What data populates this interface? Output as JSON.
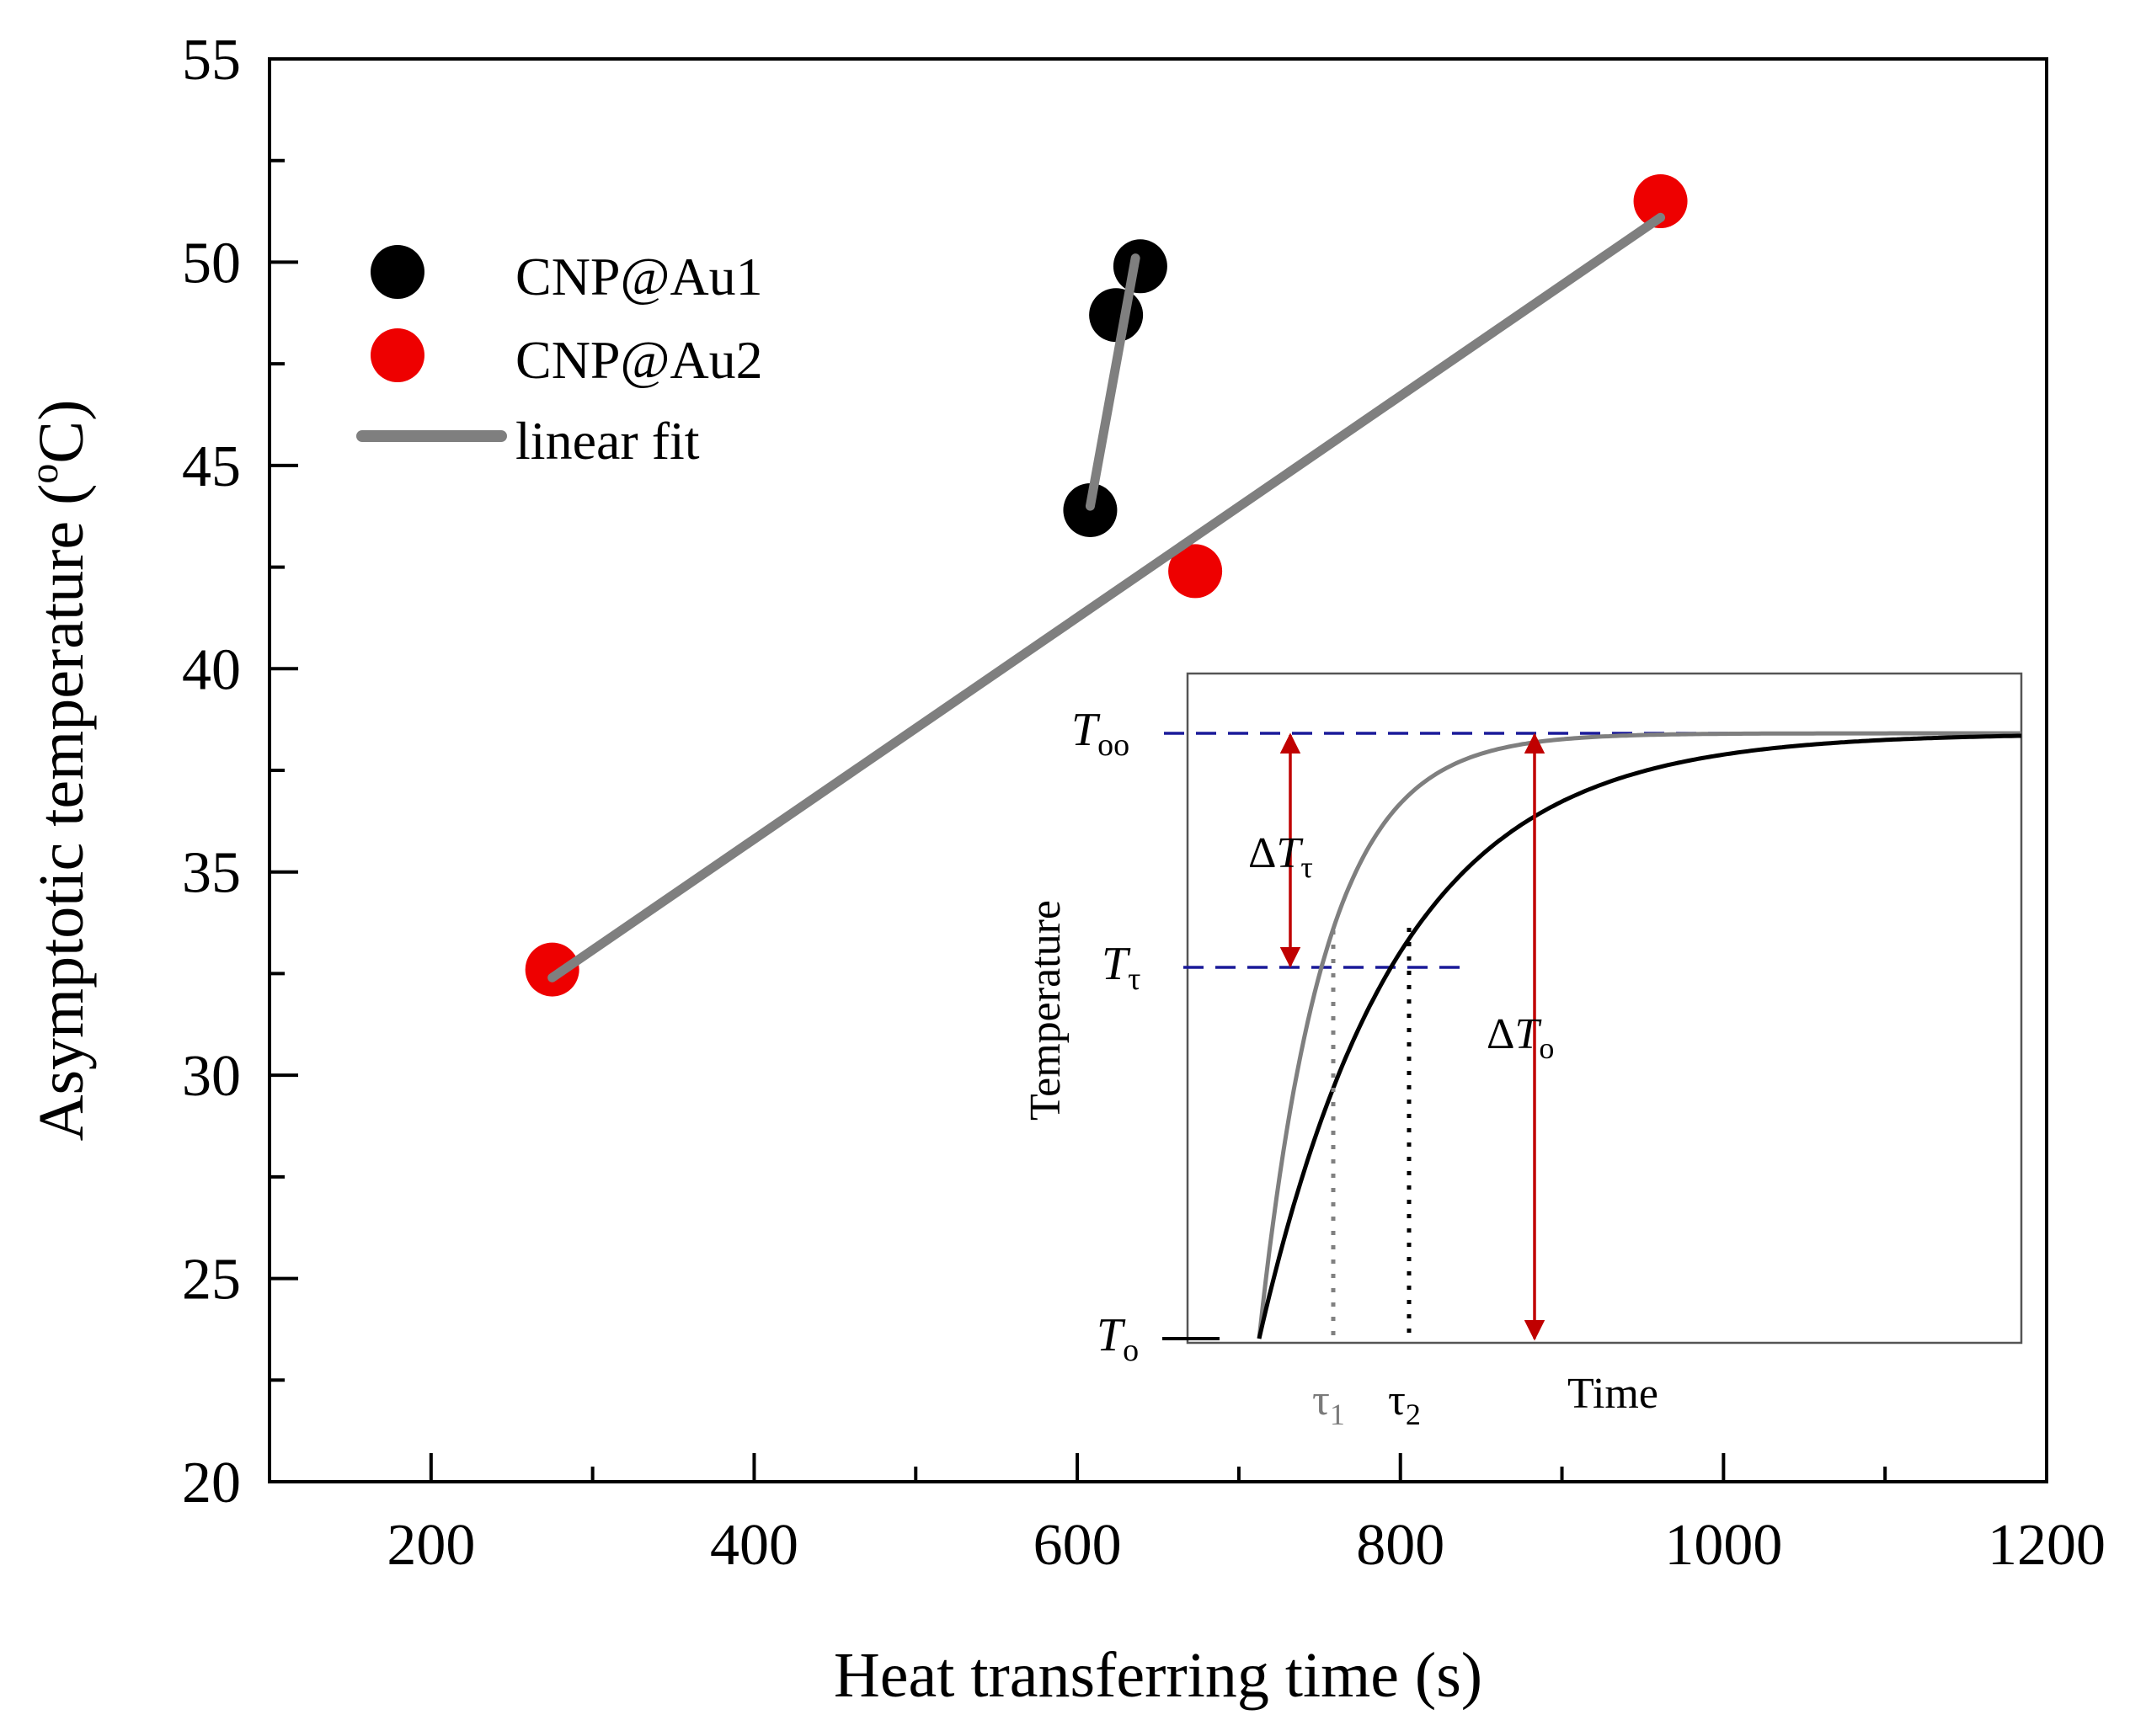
{
  "chart_data": {
    "type": "scatter",
    "xlabel": "Heat transferring time (s)",
    "ylabel": "Asymptotic temperature",
    "ylabel_unit_parts": [
      "(",
      "o",
      "C)"
    ],
    "xlim": [
      100,
      1200
    ],
    "ylim": [
      20,
      55
    ],
    "x_ticks": [
      200,
      400,
      600,
      800,
      1000,
      1200
    ],
    "x_tick_labels": [
      "200",
      "400",
      "600",
      "800",
      "1000",
      "1200"
    ],
    "y_ticks": [
      20,
      25,
      30,
      35,
      40,
      45,
      50,
      55
    ],
    "y_tick_labels": [
      "20",
      "25",
      "30",
      "35",
      "40",
      "45",
      "50",
      "55"
    ],
    "legend": {
      "position": "top-left",
      "entries": [
        {
          "label": "CNP@Au1",
          "kind": "marker",
          "color": "#000000"
        },
        {
          "label": "CNP@Au2",
          "kind": "marker",
          "color": "#ee0000"
        },
        {
          "label": "linear fit",
          "kind": "line",
          "color": "#7f7f7f"
        }
      ]
    },
    "series": [
      {
        "name": "CNP@Au1",
        "color": "#000000",
        "points": [
          [
            608,
            43.9
          ],
          [
            624,
            48.7
          ],
          [
            639,
            49.9
          ]
        ]
      },
      {
        "name": "CNP@Au2",
        "color": "#ee0000",
        "points": [
          [
            275,
            32.6
          ],
          [
            673,
            42.4
          ],
          [
            961,
            51.5
          ]
        ]
      }
    ],
    "fits": [
      {
        "name": "CNP@Au1 linear fit",
        "color": "#7f7f7f",
        "x": [
          608,
          636
        ],
        "y": [
          44.0,
          50.1
        ]
      },
      {
        "name": "CNP@Au2 linear fit",
        "color": "#7f7f7f",
        "x": [
          275,
          961
        ],
        "y": [
          32.4,
          51.1
        ]
      }
    ],
    "inset": {
      "type": "schematic-line",
      "xlabel": "Time",
      "ylabel": "Temperature",
      "labels": {
        "t_inf": {
          "main": "T",
          "sub": "oo"
        },
        "t_tau": {
          "main": "T",
          "sub": "τ"
        },
        "t_0": {
          "main": "T",
          "sub": "o"
        },
        "delta_t_tau": {
          "prefix": "Δ",
          "main": "T",
          "sub": "τ"
        },
        "delta_t_0": {
          "prefix": "Δ",
          "main": "T",
          "sub": "o"
        },
        "tau1": {
          "main": "τ",
          "sub": "1"
        },
        "tau2": {
          "main": "τ",
          "sub": "2"
        }
      },
      "curves": [
        {
          "name": "fast",
          "color": "#7f7f7f",
          "tau": 0.086
        },
        {
          "name": "slow",
          "color": "#000000",
          "tau": 0.182
        }
      ],
      "colors": {
        "dashed": "#1a1a99",
        "arrow": "#c00000"
      }
    }
  }
}
